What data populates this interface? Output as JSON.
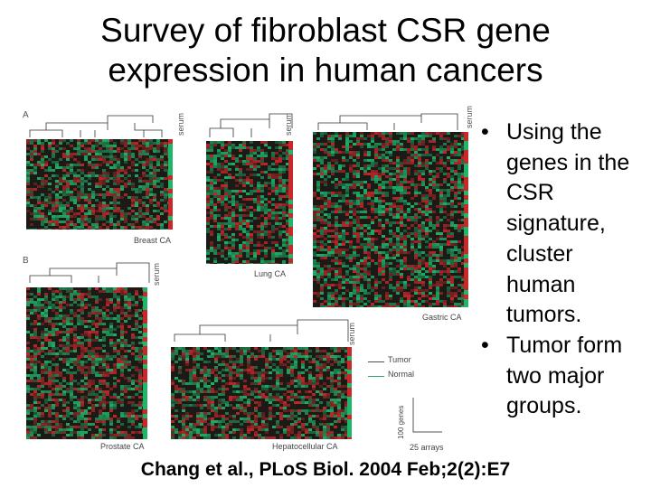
{
  "slide": {
    "title_line1": "Survey of fibroblast CSR gene",
    "title_line2": "expression in human cancers",
    "bullets": [
      "Using the genes in the CSR signature, cluster human tumors.",
      "Tumor form two major groups."
    ],
    "citation": "Chang et al., PLoS Biol. 2004 Feb;2(2):E7"
  },
  "figure": {
    "panel_a": "A",
    "panel_b": "B",
    "serum_label": "serum",
    "labels": {
      "breast": "Breast CA",
      "lung": "Lung CA",
      "gastric": "Gastric CA",
      "prostate": "Prostate CA",
      "hepato": "Hepatocellular CA"
    },
    "legend": {
      "tumor": "Tumor",
      "normal": "Normal"
    },
    "scale": {
      "genes": "100 genes",
      "arrays": "25 arrays"
    }
  },
  "colors": {
    "red": "#c8282a",
    "green": "#1fb66a",
    "dark": "#1b1a17"
  }
}
